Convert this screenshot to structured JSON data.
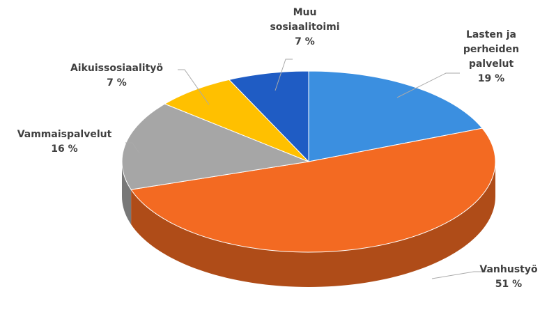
{
  "chart_data": {
    "type": "pie3d",
    "categories": [
      "Lasten ja perheiden palvelut",
      "Vanhustyö",
      "Vammaispalvelut",
      "Aikuissosiaalityö",
      "Muu sosiaalitoimi"
    ],
    "values": [
      19,
      51,
      16,
      7,
      7
    ],
    "value_labels": [
      "19 %",
      "51 %",
      "16 %",
      "7 %",
      "7 %"
    ],
    "colors": [
      "#3b8fe0",
      "#f36a22",
      "#a6a6a6",
      "#ffc000",
      "#1f5cc4"
    ]
  }
}
